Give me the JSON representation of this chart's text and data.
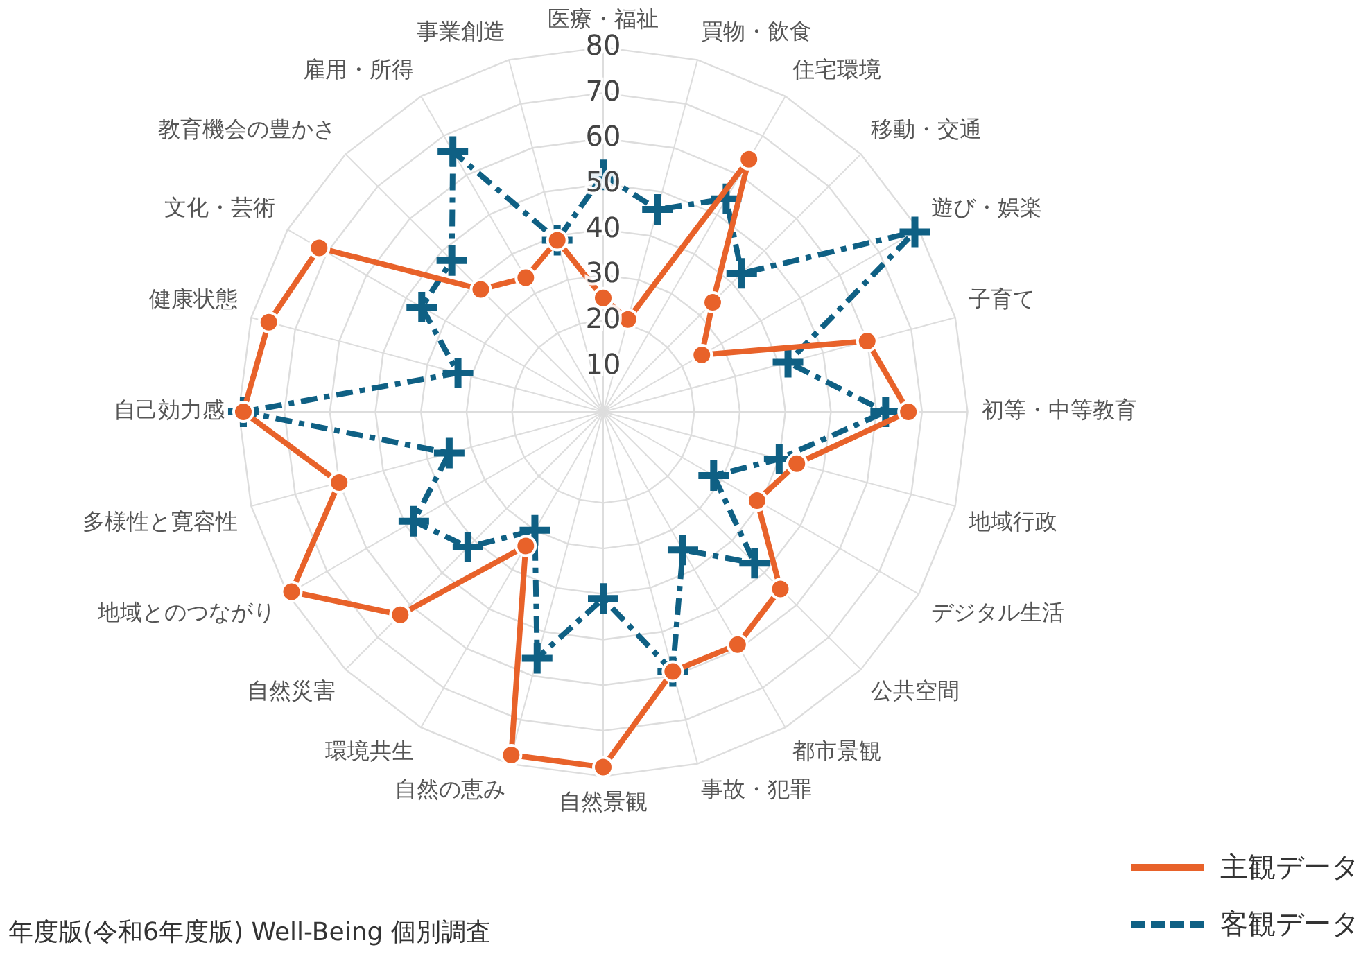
{
  "chart_data": {
    "type": "radar",
    "categories": [
      "医療・福祉",
      "買物・飲食",
      "住宅環境",
      "移動・交通",
      "遊び・娯楽",
      "子育て",
      "初等・中等教育",
      "地域行政",
      "デジタル生活",
      "公共空間",
      "都市景観",
      "事故・犯罪",
      "自然景観",
      "自然の恵み",
      "環境共生",
      "自然災害",
      "地域とのつながり",
      "多様性と寛容性",
      "自己効力感",
      "健康状態",
      "文化・芸術",
      "教育機会の豊かさ",
      "雇用・所得",
      "事業創造"
    ],
    "series": [
      {
        "name": "主観データ",
        "color": "#e8622a",
        "marker": "circle",
        "line_style": "solid",
        "values": [
          25,
          21,
          64,
          34,
          25,
          60,
          67,
          44,
          39,
          55,
          59,
          59,
          78,
          78,
          34,
          63,
          79,
          60,
          79,
          76,
          72,
          38,
          34,
          39
        ]
      },
      {
        "name": "客観データ",
        "color": "#0f6084",
        "marker": "cross",
        "line_style": "dashed",
        "values": [
          52,
          46,
          54,
          43,
          79,
          42,
          62,
          40,
          28,
          47,
          35,
          59,
          41,
          56,
          30,
          42,
          48,
          35,
          79,
          33,
          46,
          47,
          66,
          39
        ]
      }
    ],
    "ylim": [
      0,
      80
    ],
    "yticks": [
      10,
      20,
      30,
      40,
      50,
      60,
      70,
      80
    ],
    "grid": true,
    "legend": "bottom right",
    "annotations": [
      "年度版(令和6年度版) Well-Being 個別調査"
    ]
  }
}
